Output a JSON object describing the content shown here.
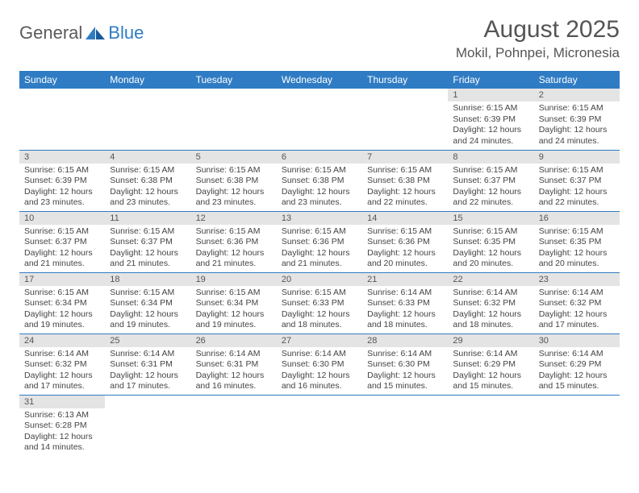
{
  "logo": {
    "text1": "General",
    "text2": "Blue"
  },
  "title": {
    "month": "August 2025",
    "location": "Mokil, Pohnpei, Micronesia"
  },
  "colors": {
    "header_bg": "#2f7cc4",
    "daynum_bg": "#e4e4e4",
    "border": "#2f7cc4"
  },
  "dayNames": [
    "Sunday",
    "Monday",
    "Tuesday",
    "Wednesday",
    "Thursday",
    "Friday",
    "Saturday"
  ],
  "weeks": [
    [
      null,
      null,
      null,
      null,
      null,
      {
        "n": "1",
        "sr": "Sunrise: 6:15 AM",
        "ss": "Sunset: 6:39 PM",
        "d1": "Daylight: 12 hours",
        "d2": "and 24 minutes."
      },
      {
        "n": "2",
        "sr": "Sunrise: 6:15 AM",
        "ss": "Sunset: 6:39 PM",
        "d1": "Daylight: 12 hours",
        "d2": "and 24 minutes."
      }
    ],
    [
      {
        "n": "3",
        "sr": "Sunrise: 6:15 AM",
        "ss": "Sunset: 6:39 PM",
        "d1": "Daylight: 12 hours",
        "d2": "and 23 minutes."
      },
      {
        "n": "4",
        "sr": "Sunrise: 6:15 AM",
        "ss": "Sunset: 6:38 PM",
        "d1": "Daylight: 12 hours",
        "d2": "and 23 minutes."
      },
      {
        "n": "5",
        "sr": "Sunrise: 6:15 AM",
        "ss": "Sunset: 6:38 PM",
        "d1": "Daylight: 12 hours",
        "d2": "and 23 minutes."
      },
      {
        "n": "6",
        "sr": "Sunrise: 6:15 AM",
        "ss": "Sunset: 6:38 PM",
        "d1": "Daylight: 12 hours",
        "d2": "and 23 minutes."
      },
      {
        "n": "7",
        "sr": "Sunrise: 6:15 AM",
        "ss": "Sunset: 6:38 PM",
        "d1": "Daylight: 12 hours",
        "d2": "and 22 minutes."
      },
      {
        "n": "8",
        "sr": "Sunrise: 6:15 AM",
        "ss": "Sunset: 6:37 PM",
        "d1": "Daylight: 12 hours",
        "d2": "and 22 minutes."
      },
      {
        "n": "9",
        "sr": "Sunrise: 6:15 AM",
        "ss": "Sunset: 6:37 PM",
        "d1": "Daylight: 12 hours",
        "d2": "and 22 minutes."
      }
    ],
    [
      {
        "n": "10",
        "sr": "Sunrise: 6:15 AM",
        "ss": "Sunset: 6:37 PM",
        "d1": "Daylight: 12 hours",
        "d2": "and 21 minutes."
      },
      {
        "n": "11",
        "sr": "Sunrise: 6:15 AM",
        "ss": "Sunset: 6:37 PM",
        "d1": "Daylight: 12 hours",
        "d2": "and 21 minutes."
      },
      {
        "n": "12",
        "sr": "Sunrise: 6:15 AM",
        "ss": "Sunset: 6:36 PM",
        "d1": "Daylight: 12 hours",
        "d2": "and 21 minutes."
      },
      {
        "n": "13",
        "sr": "Sunrise: 6:15 AM",
        "ss": "Sunset: 6:36 PM",
        "d1": "Daylight: 12 hours",
        "d2": "and 21 minutes."
      },
      {
        "n": "14",
        "sr": "Sunrise: 6:15 AM",
        "ss": "Sunset: 6:36 PM",
        "d1": "Daylight: 12 hours",
        "d2": "and 20 minutes."
      },
      {
        "n": "15",
        "sr": "Sunrise: 6:15 AM",
        "ss": "Sunset: 6:35 PM",
        "d1": "Daylight: 12 hours",
        "d2": "and 20 minutes."
      },
      {
        "n": "16",
        "sr": "Sunrise: 6:15 AM",
        "ss": "Sunset: 6:35 PM",
        "d1": "Daylight: 12 hours",
        "d2": "and 20 minutes."
      }
    ],
    [
      {
        "n": "17",
        "sr": "Sunrise: 6:15 AM",
        "ss": "Sunset: 6:34 PM",
        "d1": "Daylight: 12 hours",
        "d2": "and 19 minutes."
      },
      {
        "n": "18",
        "sr": "Sunrise: 6:15 AM",
        "ss": "Sunset: 6:34 PM",
        "d1": "Daylight: 12 hours",
        "d2": "and 19 minutes."
      },
      {
        "n": "19",
        "sr": "Sunrise: 6:15 AM",
        "ss": "Sunset: 6:34 PM",
        "d1": "Daylight: 12 hours",
        "d2": "and 19 minutes."
      },
      {
        "n": "20",
        "sr": "Sunrise: 6:15 AM",
        "ss": "Sunset: 6:33 PM",
        "d1": "Daylight: 12 hours",
        "d2": "and 18 minutes."
      },
      {
        "n": "21",
        "sr": "Sunrise: 6:14 AM",
        "ss": "Sunset: 6:33 PM",
        "d1": "Daylight: 12 hours",
        "d2": "and 18 minutes."
      },
      {
        "n": "22",
        "sr": "Sunrise: 6:14 AM",
        "ss": "Sunset: 6:32 PM",
        "d1": "Daylight: 12 hours",
        "d2": "and 18 minutes."
      },
      {
        "n": "23",
        "sr": "Sunrise: 6:14 AM",
        "ss": "Sunset: 6:32 PM",
        "d1": "Daylight: 12 hours",
        "d2": "and 17 minutes."
      }
    ],
    [
      {
        "n": "24",
        "sr": "Sunrise: 6:14 AM",
        "ss": "Sunset: 6:32 PM",
        "d1": "Daylight: 12 hours",
        "d2": "and 17 minutes."
      },
      {
        "n": "25",
        "sr": "Sunrise: 6:14 AM",
        "ss": "Sunset: 6:31 PM",
        "d1": "Daylight: 12 hours",
        "d2": "and 17 minutes."
      },
      {
        "n": "26",
        "sr": "Sunrise: 6:14 AM",
        "ss": "Sunset: 6:31 PM",
        "d1": "Daylight: 12 hours",
        "d2": "and 16 minutes."
      },
      {
        "n": "27",
        "sr": "Sunrise: 6:14 AM",
        "ss": "Sunset: 6:30 PM",
        "d1": "Daylight: 12 hours",
        "d2": "and 16 minutes."
      },
      {
        "n": "28",
        "sr": "Sunrise: 6:14 AM",
        "ss": "Sunset: 6:30 PM",
        "d1": "Daylight: 12 hours",
        "d2": "and 15 minutes."
      },
      {
        "n": "29",
        "sr": "Sunrise: 6:14 AM",
        "ss": "Sunset: 6:29 PM",
        "d1": "Daylight: 12 hours",
        "d2": "and 15 minutes."
      },
      {
        "n": "30",
        "sr": "Sunrise: 6:14 AM",
        "ss": "Sunset: 6:29 PM",
        "d1": "Daylight: 12 hours",
        "d2": "and 15 minutes."
      }
    ],
    [
      {
        "n": "31",
        "sr": "Sunrise: 6:13 AM",
        "ss": "Sunset: 6:28 PM",
        "d1": "Daylight: 12 hours",
        "d2": "and 14 minutes."
      },
      null,
      null,
      null,
      null,
      null,
      null
    ]
  ]
}
